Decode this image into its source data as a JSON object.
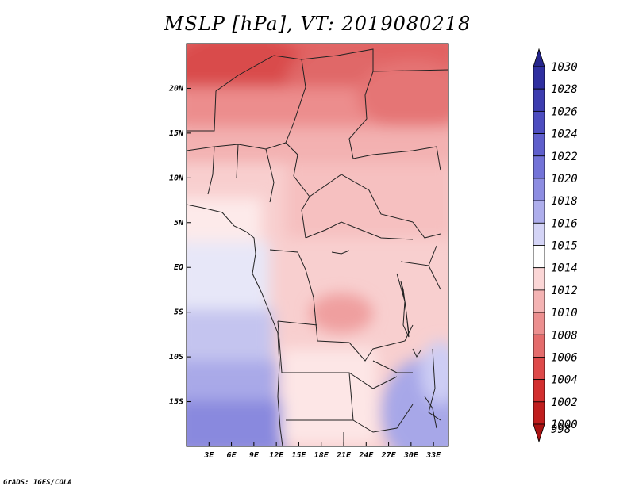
{
  "title": "MSLP [hPa], VT: 2019080218",
  "credit": "GrADS: IGES/COLA",
  "map": {
    "lon_range": [
      0,
      35
    ],
    "lat_range": [
      -20,
      25
    ],
    "x_ticks": [
      "3E",
      "6E",
      "9E",
      "12E",
      "15E",
      "18E",
      "21E",
      "24E",
      "27E",
      "30E",
      "33E"
    ],
    "x_tick_values": [
      3,
      6,
      9,
      12,
      15,
      18,
      21,
      24,
      27,
      30,
      33
    ],
    "y_ticks": [
      "20N",
      "15N",
      "10N",
      "5N",
      "EQ",
      "5S",
      "10S",
      "15S"
    ],
    "y_tick_values": [
      20,
      15,
      10,
      5,
      0,
      -5,
      -10,
      -15
    ]
  },
  "colorbar": {
    "labels": [
      "1030",
      "1028",
      "1026",
      "1024",
      "1022",
      "1020",
      "1018",
      "1016",
      "1015",
      "1014",
      "1012",
      "1010",
      "1008",
      "1006",
      "1004",
      "1002",
      "1000",
      "998"
    ],
    "colors": [
      "#25258c",
      "#2f2fa0",
      "#3d3db0",
      "#4d4dc0",
      "#5f5fcc",
      "#7373d8",
      "#8d8de2",
      "#aeaeec",
      "#d4d4f6",
      "#ffffff",
      "#fbd6d6",
      "#f4b3b3",
      "#ec8f8f",
      "#e46c6c",
      "#de4a4a",
      "#d22f2f",
      "#c01e1e",
      "#a81212"
    ]
  }
}
